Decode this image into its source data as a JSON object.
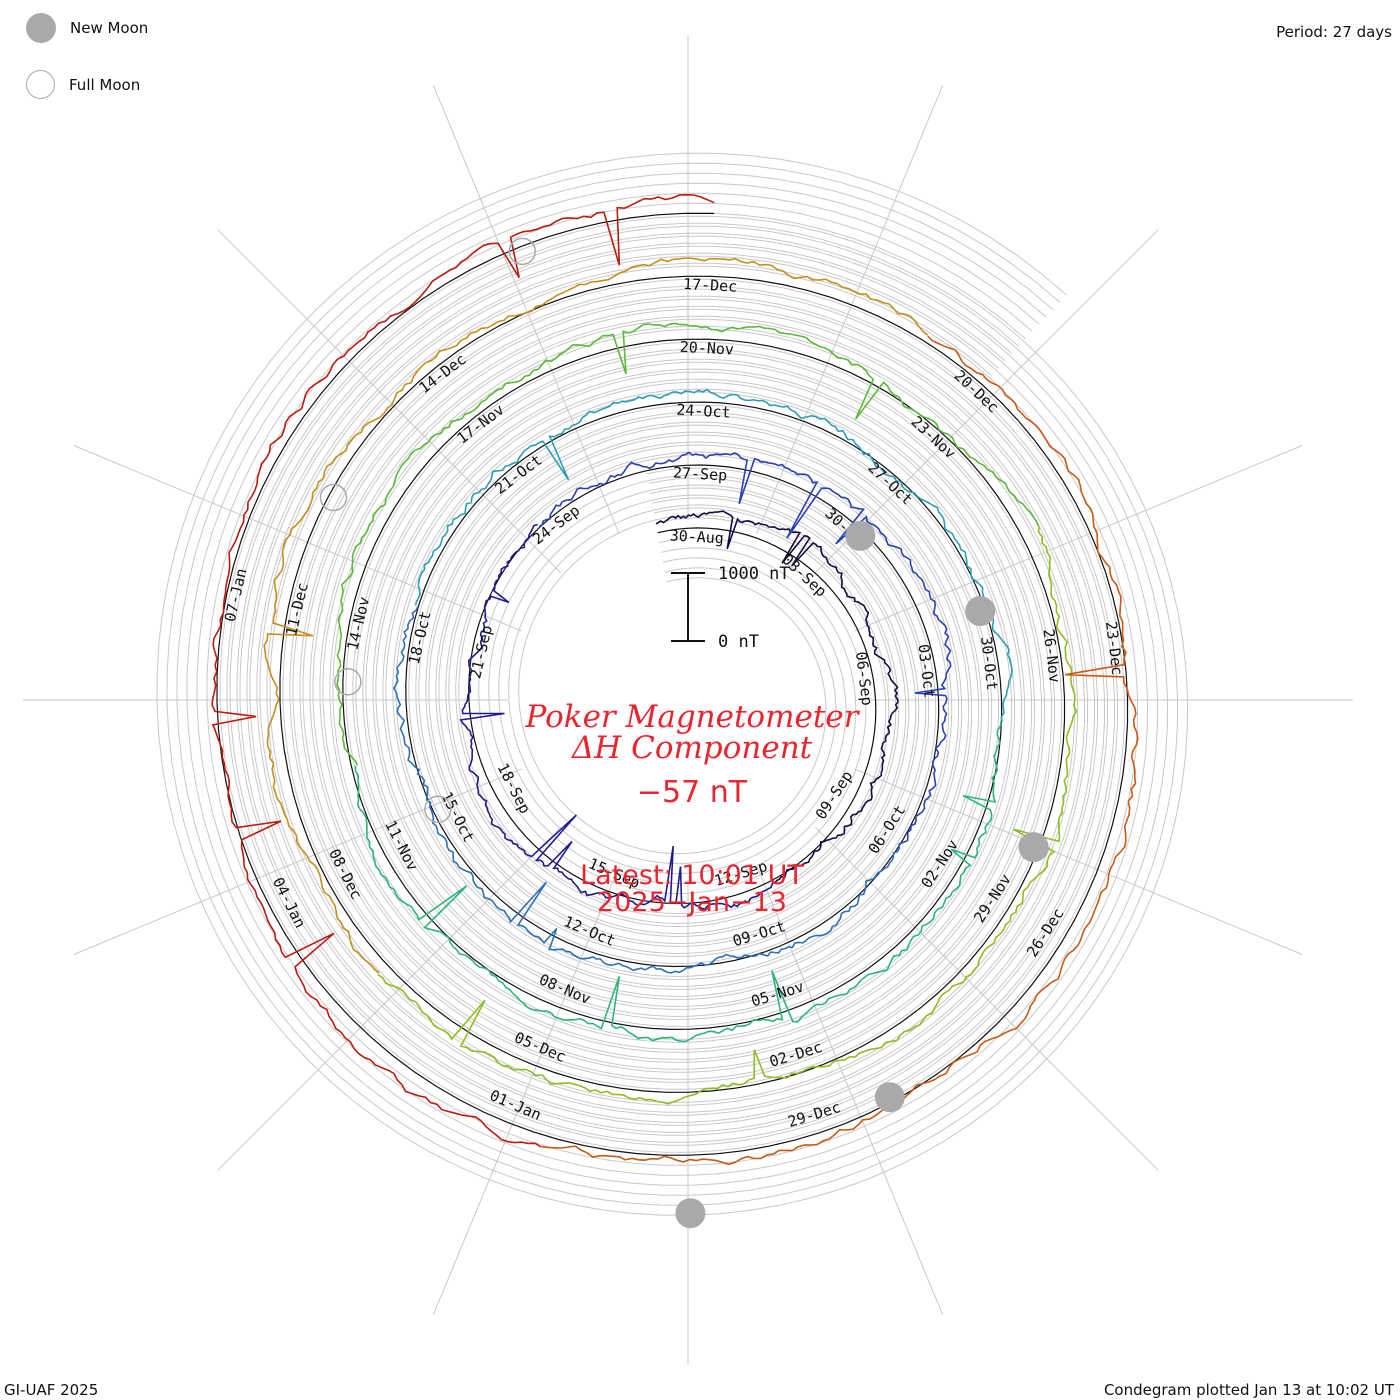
{
  "legend": {
    "new_moon_label": "New Moon",
    "full_moon_label": "Full Moon",
    "period_label": "Period: 27 days"
  },
  "footer": {
    "credit": "GI-UAF 2025",
    "plotted": "Condegram plotted Jan 13 at 10:02 UT"
  },
  "center": {
    "title_line1": "Poker Magnetometer",
    "title_line2": "ΔH Component",
    "current_value": "−57 nT",
    "latest_line1": "Latest: 10:01 UT",
    "latest_line2": "2025−Jan−13",
    "scale_top_label": "1000 nT",
    "scale_bottom_label": "0 nT"
  },
  "colors": {
    "title": "#e8262f",
    "grid": "#c8c8c8",
    "moon": "#a9a9a9"
  },
  "chart_data": {
    "type": "line",
    "chart_style": "spiral condegram (27-day period)",
    "title": "Poker Magnetometer ΔH Component",
    "current_value_nT": -57,
    "scale_bar_nT": [
      0,
      1000
    ],
    "date_labels": [
      "30-Aug",
      "03-Sep",
      "06-Sep",
      "09-Sep",
      "12-Sep",
      "15-Sep",
      "18-Sep",
      "21-Sep",
      "24-Sep",
      "27-Sep",
      "30-Sep",
      "03-Oct",
      "06-Oct",
      "09-Oct",
      "12-Oct",
      "15-Oct",
      "18-Oct",
      "21-Oct",
      "24-Oct",
      "27-Oct",
      "30-Oct",
      "02-Nov",
      "05-Nov",
      "08-Nov",
      "11-Nov",
      "14-Nov",
      "17-Nov",
      "20-Nov",
      "23-Nov",
      "26-Nov",
      "29-Nov",
      "02-Dec",
      "05-Dec",
      "08-Dec",
      "11-Dec",
      "14-Dec",
      "17-Dec",
      "20-Dec",
      "23-Dec",
      "26-Dec",
      "29-Dec",
      "01-Jan",
      "04-Jan",
      "07-Jan"
    ],
    "new_moon_dates": [
      "2024-09-03",
      "2024-10-02",
      "2024-11-01",
      "2024-12-01",
      "2024-12-30"
    ],
    "full_moon_dates": [
      "2024-09-18",
      "2024-10-17",
      "2024-11-15",
      "2024-12-15"
    ],
    "series_colors": [
      "#160a40",
      "#1f1c8f",
      "#2a3fb5",
      "#2f6fb8",
      "#2e9db5",
      "#2db57a",
      "#5cb83a",
      "#8fbd24",
      "#c48f1f",
      "#c65a17",
      "#b81c10"
    ]
  }
}
